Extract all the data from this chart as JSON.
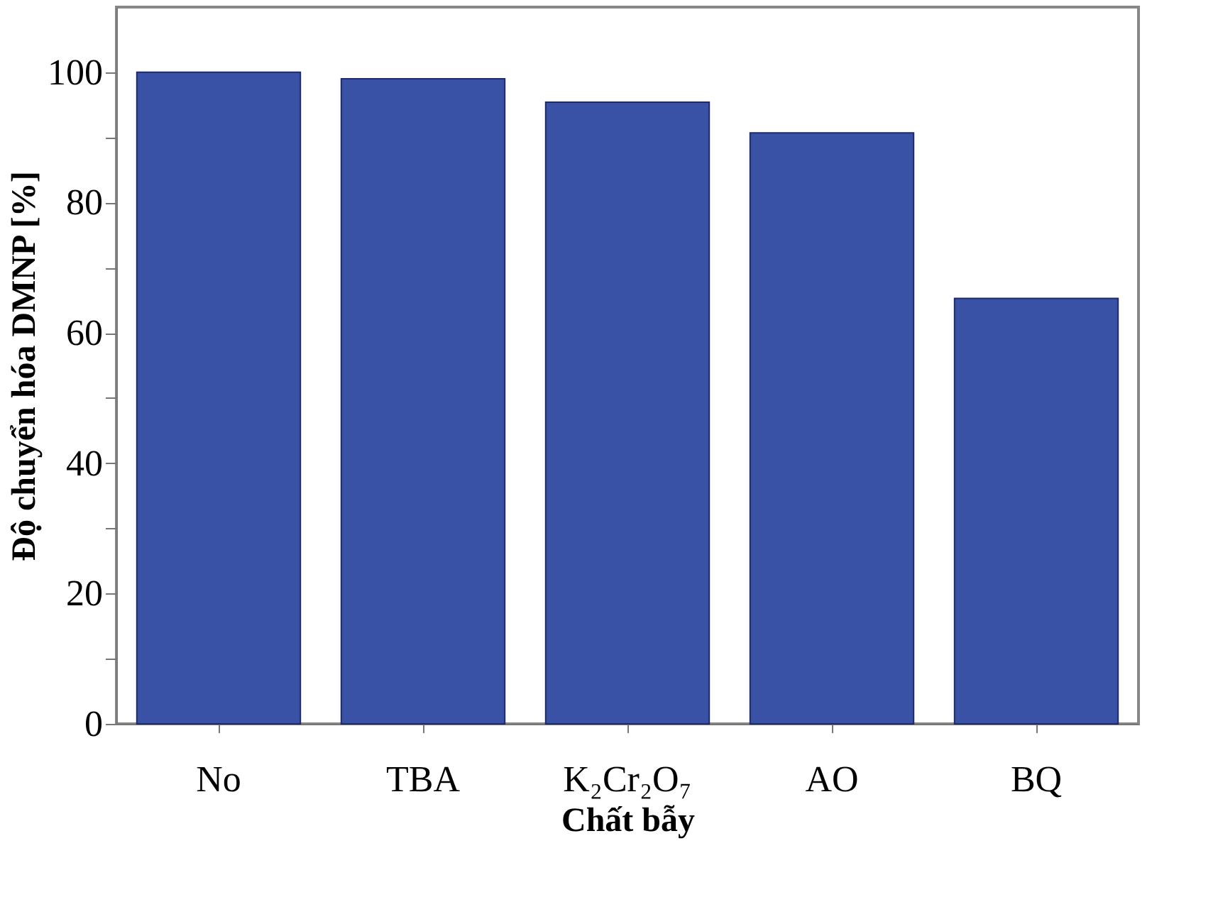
{
  "chart_data": {
    "type": "bar",
    "xlabel": "Chất bẫy",
    "ylabel": "Độ chuyển hóa DMNP [%]",
    "categories": [
      "No",
      "TBA",
      "K₂Cr₂O₇",
      "AO",
      "BQ"
    ],
    "values": [
      100,
      99,
      95.4,
      90.7,
      65.3
    ],
    "color": "#3a52a6",
    "ylim": [
      0,
      110
    ],
    "yticks": [
      0,
      {
        "value": 10,
        "label": null
      },
      20,
      {
        "value": 30,
        "label": null
      },
      40,
      {
        "value": 50,
        "label": null
      },
      60,
      {
        "value": 70,
        "label": null
      },
      80,
      {
        "value": 90,
        "label": null
      },
      100
    ],
    "grid": false
  }
}
